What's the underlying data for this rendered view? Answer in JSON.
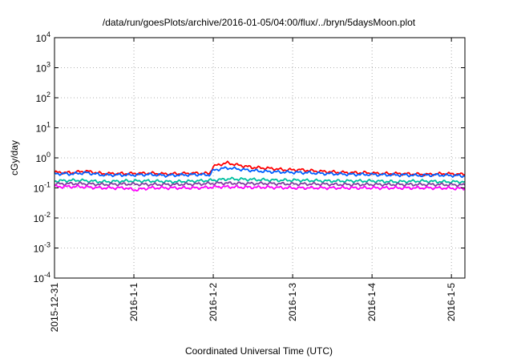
{
  "chart_data": {
    "type": "line",
    "title": "/data/run/goesPlots/archive/2016-01-05/04:00/flux/../bryn/5daysMoon.plot",
    "xlabel": "Coordinated Universal Time (UTC)",
    "ylabel": "cGy/day",
    "y_scale": "log",
    "ylim_exponents": [
      -4,
      4
    ],
    "xlim_days": [
      0,
      5.17
    ],
    "x_ticks": [
      "2015-12-31",
      "2016-1-1",
      "2016-1-2",
      "2016-1-3",
      "2016-1-4",
      "2016-1-5"
    ],
    "y_ticks": [
      {
        "base": "10",
        "exp": "4"
      },
      {
        "base": "10",
        "exp": "3"
      },
      {
        "base": "10",
        "exp": "2"
      },
      {
        "base": "10",
        "exp": "1"
      },
      {
        "base": "10",
        "exp": "0"
      },
      {
        "base": "10",
        "exp": "-1"
      },
      {
        "base": "10",
        "exp": "-2"
      },
      {
        "base": "10",
        "exp": "-3"
      },
      {
        "base": "10",
        "exp": "-4"
      }
    ],
    "grid": true,
    "series": [
      {
        "color": "#ff0000",
        "points": [
          [
            0,
            0.33
          ],
          [
            0.2,
            0.32
          ],
          [
            0.4,
            0.36
          ],
          [
            0.6,
            0.3
          ],
          [
            0.8,
            0.3
          ],
          [
            1.0,
            0.3
          ],
          [
            1.2,
            0.31
          ],
          [
            1.4,
            0.29
          ],
          [
            1.6,
            0.3
          ],
          [
            1.8,
            0.31
          ],
          [
            1.95,
            0.3
          ],
          [
            2.0,
            0.52
          ],
          [
            2.1,
            0.62
          ],
          [
            2.18,
            0.68
          ],
          [
            2.3,
            0.58
          ],
          [
            2.5,
            0.48
          ],
          [
            2.7,
            0.45
          ],
          [
            2.9,
            0.4
          ],
          [
            3.1,
            0.4
          ],
          [
            3.3,
            0.36
          ],
          [
            3.5,
            0.34
          ],
          [
            3.7,
            0.32
          ],
          [
            3.9,
            0.32
          ],
          [
            4.1,
            0.3
          ],
          [
            4.3,
            0.3
          ],
          [
            4.5,
            0.29
          ],
          [
            4.7,
            0.28
          ],
          [
            4.9,
            0.3
          ],
          [
            5.17,
            0.28
          ]
        ]
      },
      {
        "color": "#0060ff",
        "points": [
          [
            0,
            0.3
          ],
          [
            0.2,
            0.29
          ],
          [
            0.4,
            0.32
          ],
          [
            0.6,
            0.27
          ],
          [
            0.8,
            0.27
          ],
          [
            1.0,
            0.27
          ],
          [
            1.2,
            0.28
          ],
          [
            1.4,
            0.26
          ],
          [
            1.6,
            0.27
          ],
          [
            1.8,
            0.28
          ],
          [
            1.95,
            0.27
          ],
          [
            2.0,
            0.38
          ],
          [
            2.1,
            0.44
          ],
          [
            2.2,
            0.46
          ],
          [
            2.4,
            0.4
          ],
          [
            2.6,
            0.36
          ],
          [
            2.8,
            0.34
          ],
          [
            3.0,
            0.33
          ],
          [
            3.2,
            0.32
          ],
          [
            3.4,
            0.3
          ],
          [
            3.6,
            0.29
          ],
          [
            3.8,
            0.28
          ],
          [
            4.0,
            0.28
          ],
          [
            4.2,
            0.27
          ],
          [
            4.4,
            0.27
          ],
          [
            4.6,
            0.26
          ],
          [
            4.8,
            0.27
          ],
          [
            5.0,
            0.26
          ],
          [
            5.17,
            0.25
          ]
        ]
      },
      {
        "color": "#00c0a0",
        "points": [
          [
            0,
            0.17
          ],
          [
            0.3,
            0.18
          ],
          [
            0.6,
            0.16
          ],
          [
            0.9,
            0.17
          ],
          [
            1.2,
            0.17
          ],
          [
            1.5,
            0.16
          ],
          [
            1.8,
            0.17
          ],
          [
            2.0,
            0.18
          ],
          [
            2.2,
            0.2
          ],
          [
            2.5,
            0.19
          ],
          [
            2.8,
            0.18
          ],
          [
            3.1,
            0.18
          ],
          [
            3.4,
            0.17
          ],
          [
            3.7,
            0.17
          ],
          [
            4.0,
            0.17
          ],
          [
            4.3,
            0.16
          ],
          [
            4.6,
            0.17
          ],
          [
            4.9,
            0.16
          ],
          [
            5.17,
            0.16
          ]
        ]
      },
      {
        "color": "#8040a0",
        "points": [
          [
            0,
            0.135
          ],
          [
            0.3,
            0.14
          ],
          [
            0.6,
            0.13
          ],
          [
            0.9,
            0.135
          ],
          [
            1.2,
            0.13
          ],
          [
            1.5,
            0.13
          ],
          [
            1.8,
            0.135
          ],
          [
            2.1,
            0.145
          ],
          [
            2.4,
            0.14
          ],
          [
            2.7,
            0.14
          ],
          [
            3.0,
            0.135
          ],
          [
            3.3,
            0.135
          ],
          [
            3.6,
            0.13
          ],
          [
            3.9,
            0.13
          ],
          [
            4.2,
            0.13
          ],
          [
            4.5,
            0.13
          ],
          [
            4.8,
            0.13
          ],
          [
            5.17,
            0.125
          ]
        ]
      },
      {
        "color": "#ff00ff",
        "points": [
          [
            0,
            0.11
          ],
          [
            0.3,
            0.11
          ],
          [
            0.6,
            0.1
          ],
          [
            0.9,
            0.1
          ],
          [
            1.0,
            0.085
          ],
          [
            1.2,
            0.1
          ],
          [
            1.5,
            0.1
          ],
          [
            1.8,
            0.1
          ],
          [
            2.1,
            0.11
          ],
          [
            2.4,
            0.105
          ],
          [
            2.7,
            0.105
          ],
          [
            3.0,
            0.1
          ],
          [
            3.3,
            0.1
          ],
          [
            3.6,
            0.1
          ],
          [
            3.9,
            0.1
          ],
          [
            4.2,
            0.1
          ],
          [
            4.5,
            0.1
          ],
          [
            4.8,
            0.1
          ],
          [
            5.17,
            0.095
          ]
        ]
      }
    ]
  }
}
